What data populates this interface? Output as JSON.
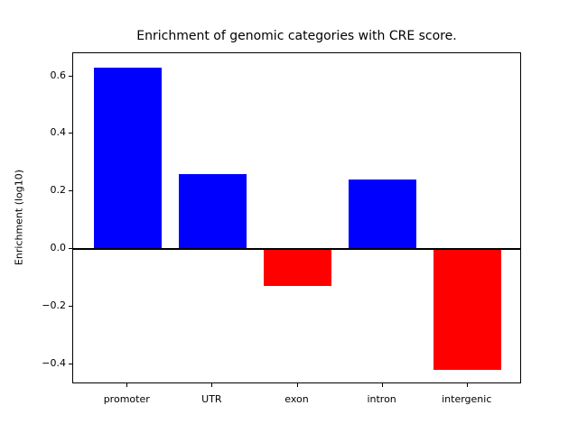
{
  "chart_data": {
    "type": "bar",
    "title": "Enrichment of genomic categories with CRE score.",
    "ylabel": "Enrichment (log10)",
    "xlabel": "",
    "categories": [
      "promoter",
      "UTR",
      "exon",
      "intron",
      "intergenic"
    ],
    "values": [
      0.63,
      0.26,
      -0.13,
      0.24,
      -0.42
    ],
    "bar_colors": [
      "#0000ff",
      "#0000ff",
      "#ff0000",
      "#0000ff",
      "#ff0000"
    ],
    "positive_color": "#0000ff",
    "negative_color": "#ff0000",
    "yticks": [
      0.6,
      0.4,
      0.2,
      0.0,
      -0.2,
      -0.4
    ],
    "ytick_labels": [
      "0.6",
      "0.4",
      "0.2",
      "0.0",
      "−0.2",
      "−0.4"
    ],
    "ylim": [
      -0.47,
      0.68
    ],
    "grid": false,
    "legend": "none",
    "zero_line": true,
    "background": "#ffffff",
    "axis_color": "#000000"
  }
}
